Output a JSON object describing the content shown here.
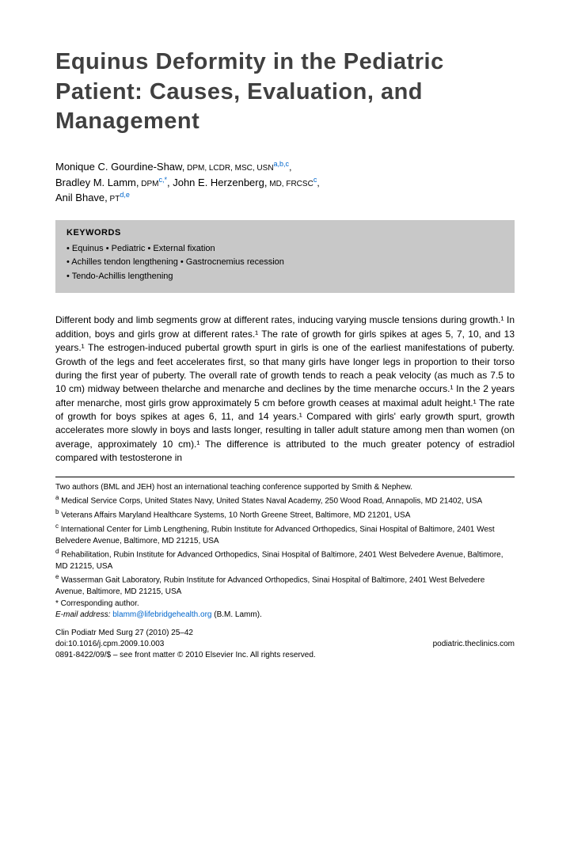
{
  "title": "Equinus Deformity in the Pediatric Patient: Causes, Evaluation, and Management",
  "authors_html_parts": {
    "a1_name": "Monique C. Gourdine-Shaw,",
    "a1_cred": " DPM, LCDR, MSC, USN",
    "a1_sup": "a,b,c",
    "a2_name": "Bradley M. Lamm,",
    "a2_cred": " DPM",
    "a2_sup": "c,*",
    "a3_name": ", John E. Herzenberg,",
    "a3_cred": " MD, FRCSC",
    "a3_sup": "c",
    "a4_name": "Anil Bhave,",
    "a4_cred": " PT",
    "a4_sup": "d,e"
  },
  "keywords": {
    "heading": "KEYWORDS",
    "line1": "• Equinus • Pediatric • External fixation",
    "line2": "• Achilles tendon lengthening • Gastrocnemius recession",
    "line3": "• Tendo-Achillis lengthening"
  },
  "body": "Different body and limb segments grow at different rates, inducing varying muscle tensions during growth.¹ In addition, boys and girls grow at different rates.¹ The rate of growth for girls spikes at ages 5, 7, 10, and 13 years.¹ The estrogen-induced pubertal growth spurt in girls is one of the earliest manifestations of puberty. Growth of the legs and feet accelerates first, so that many girls have longer legs in proportion to their torso during the first year of puberty. The overall rate of growth tends to reach a peak velocity (as much as 7.5 to 10 cm) midway between thelarche and menarche and declines by the time menarche occurs.¹ In the 2 years after menarche, most girls grow approximately 5 cm before growth ceases at maximal adult height.¹ The rate of growth for boys spikes at ages 6, 11, and 14 years.¹ Compared with girls' early growth spurt, growth accelerates more slowly in boys and lasts longer, resulting in taller adult stature among men than women (on average, approximately 10 cm).¹ The difference is attributed to the much greater potency of estradiol compared with testosterone in",
  "footnotes": {
    "conflict": "Two authors (BML and JEH) host an international teaching conference supported by Smith & Nephew.",
    "aff_a": "Medical Service Corps, United States Navy, United States Naval Academy, 250 Wood Road, Annapolis, MD 21402, USA",
    "aff_b": "Veterans Affairs Maryland Healthcare Systems, 10 North Greene Street, Baltimore, MD 21201, USA",
    "aff_c": "International Center for Limb Lengthening, Rubin Institute for Advanced Orthopedics, Sinai Hospital of Baltimore, 2401 West Belvedere Avenue, Baltimore, MD 21215, USA",
    "aff_d": "Rehabilitation, Rubin Institute for Advanced Orthopedics, Sinai Hospital of Baltimore, 2401 West Belvedere Avenue, Baltimore, MD 21215, USA",
    "aff_e": "Wasserman Gait Laboratory, Rubin Institute for Advanced Orthopedics, Sinai Hospital of Baltimore, 2401 West Belvedere Avenue, Baltimore, MD 21215, USA",
    "corresponding": "* Corresponding author.",
    "email_label": "E-mail address:",
    "email": "blamm@lifebridgehealth.org",
    "email_suffix": "(B.M. Lamm)."
  },
  "pubinfo": {
    "journal": "Clin Podiatr Med Surg 27 (2010) 25–42",
    "doi": "doi:10.1016/j.cpm.2009.10.003",
    "site": "podiatric.theclinics.com",
    "copyright": "0891-8422/09/$ – see front matter © 2010 Elsevier Inc. All rights reserved."
  }
}
